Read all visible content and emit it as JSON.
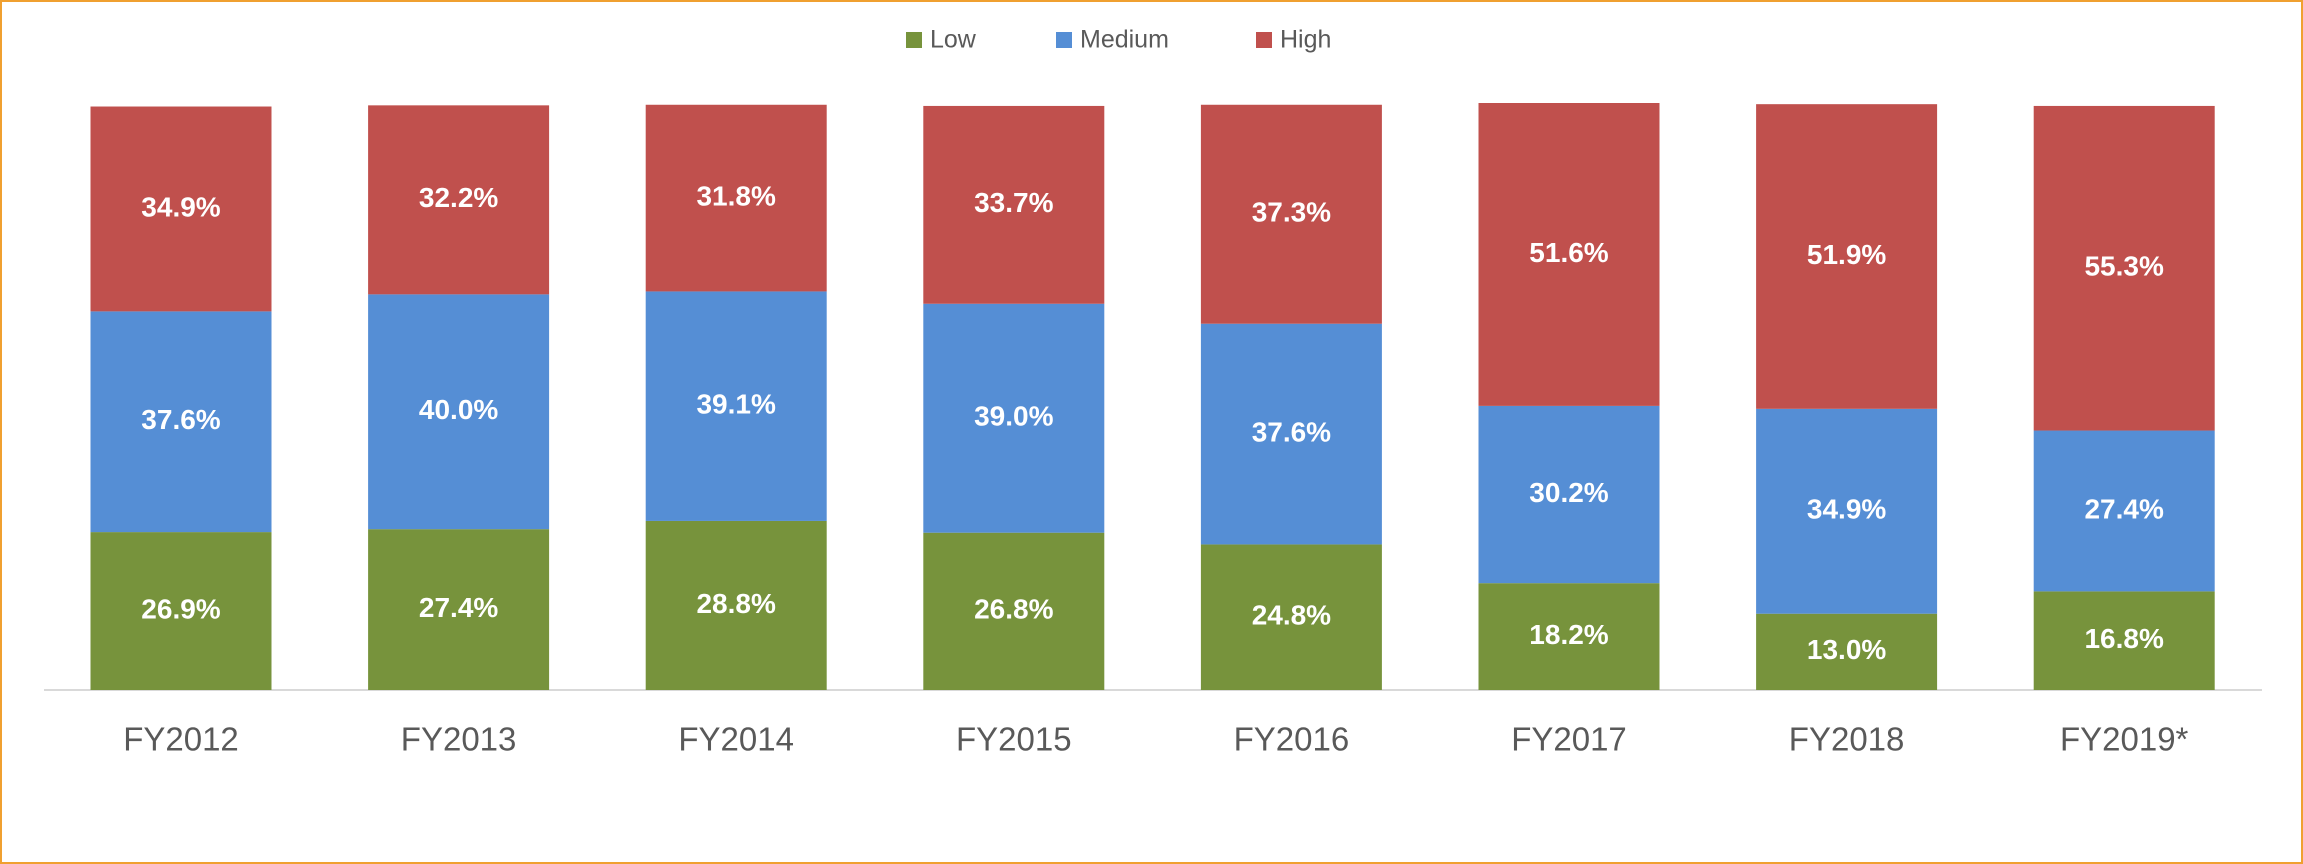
{
  "chart_data": {
    "type": "stacked_bar",
    "categories": [
      "FY2012",
      "FY2013",
      "FY2014",
      "FY2015",
      "FY2016",
      "FY2017",
      "FY2018",
      "FY2019*"
    ],
    "series": [
      {
        "name": "Low",
        "color": "#77933c",
        "values": [
          26.9,
          27.4,
          28.8,
          26.8,
          24.8,
          18.2,
          13.0,
          16.8
        ],
        "value_labels": [
          "26.9%",
          "27.4%",
          "28.8%",
          "26.8%",
          "24.8%",
          "18.2%",
          "13.0%",
          "16.8%"
        ]
      },
      {
        "name": "Medium",
        "color": "#558ed5",
        "values": [
          37.6,
          40.0,
          39.1,
          39.0,
          37.6,
          30.2,
          34.9,
          27.4
        ],
        "value_labels": [
          "37.6%",
          "40.0%",
          "39.1%",
          "39.0%",
          "37.6%",
          "30.2%",
          "34.9%",
          "27.4%"
        ]
      },
      {
        "name": "High",
        "color": "#c0504d",
        "values": [
          34.9,
          32.2,
          31.8,
          33.7,
          37.3,
          51.6,
          51.9,
          55.3
        ],
        "value_labels": [
          "34.9%",
          "32.2%",
          "31.8%",
          "33.7%",
          "37.3%",
          "51.6%",
          "51.9%",
          "55.3%"
        ]
      }
    ],
    "ylim": [
      0,
      100
    ],
    "legend": "top"
  }
}
